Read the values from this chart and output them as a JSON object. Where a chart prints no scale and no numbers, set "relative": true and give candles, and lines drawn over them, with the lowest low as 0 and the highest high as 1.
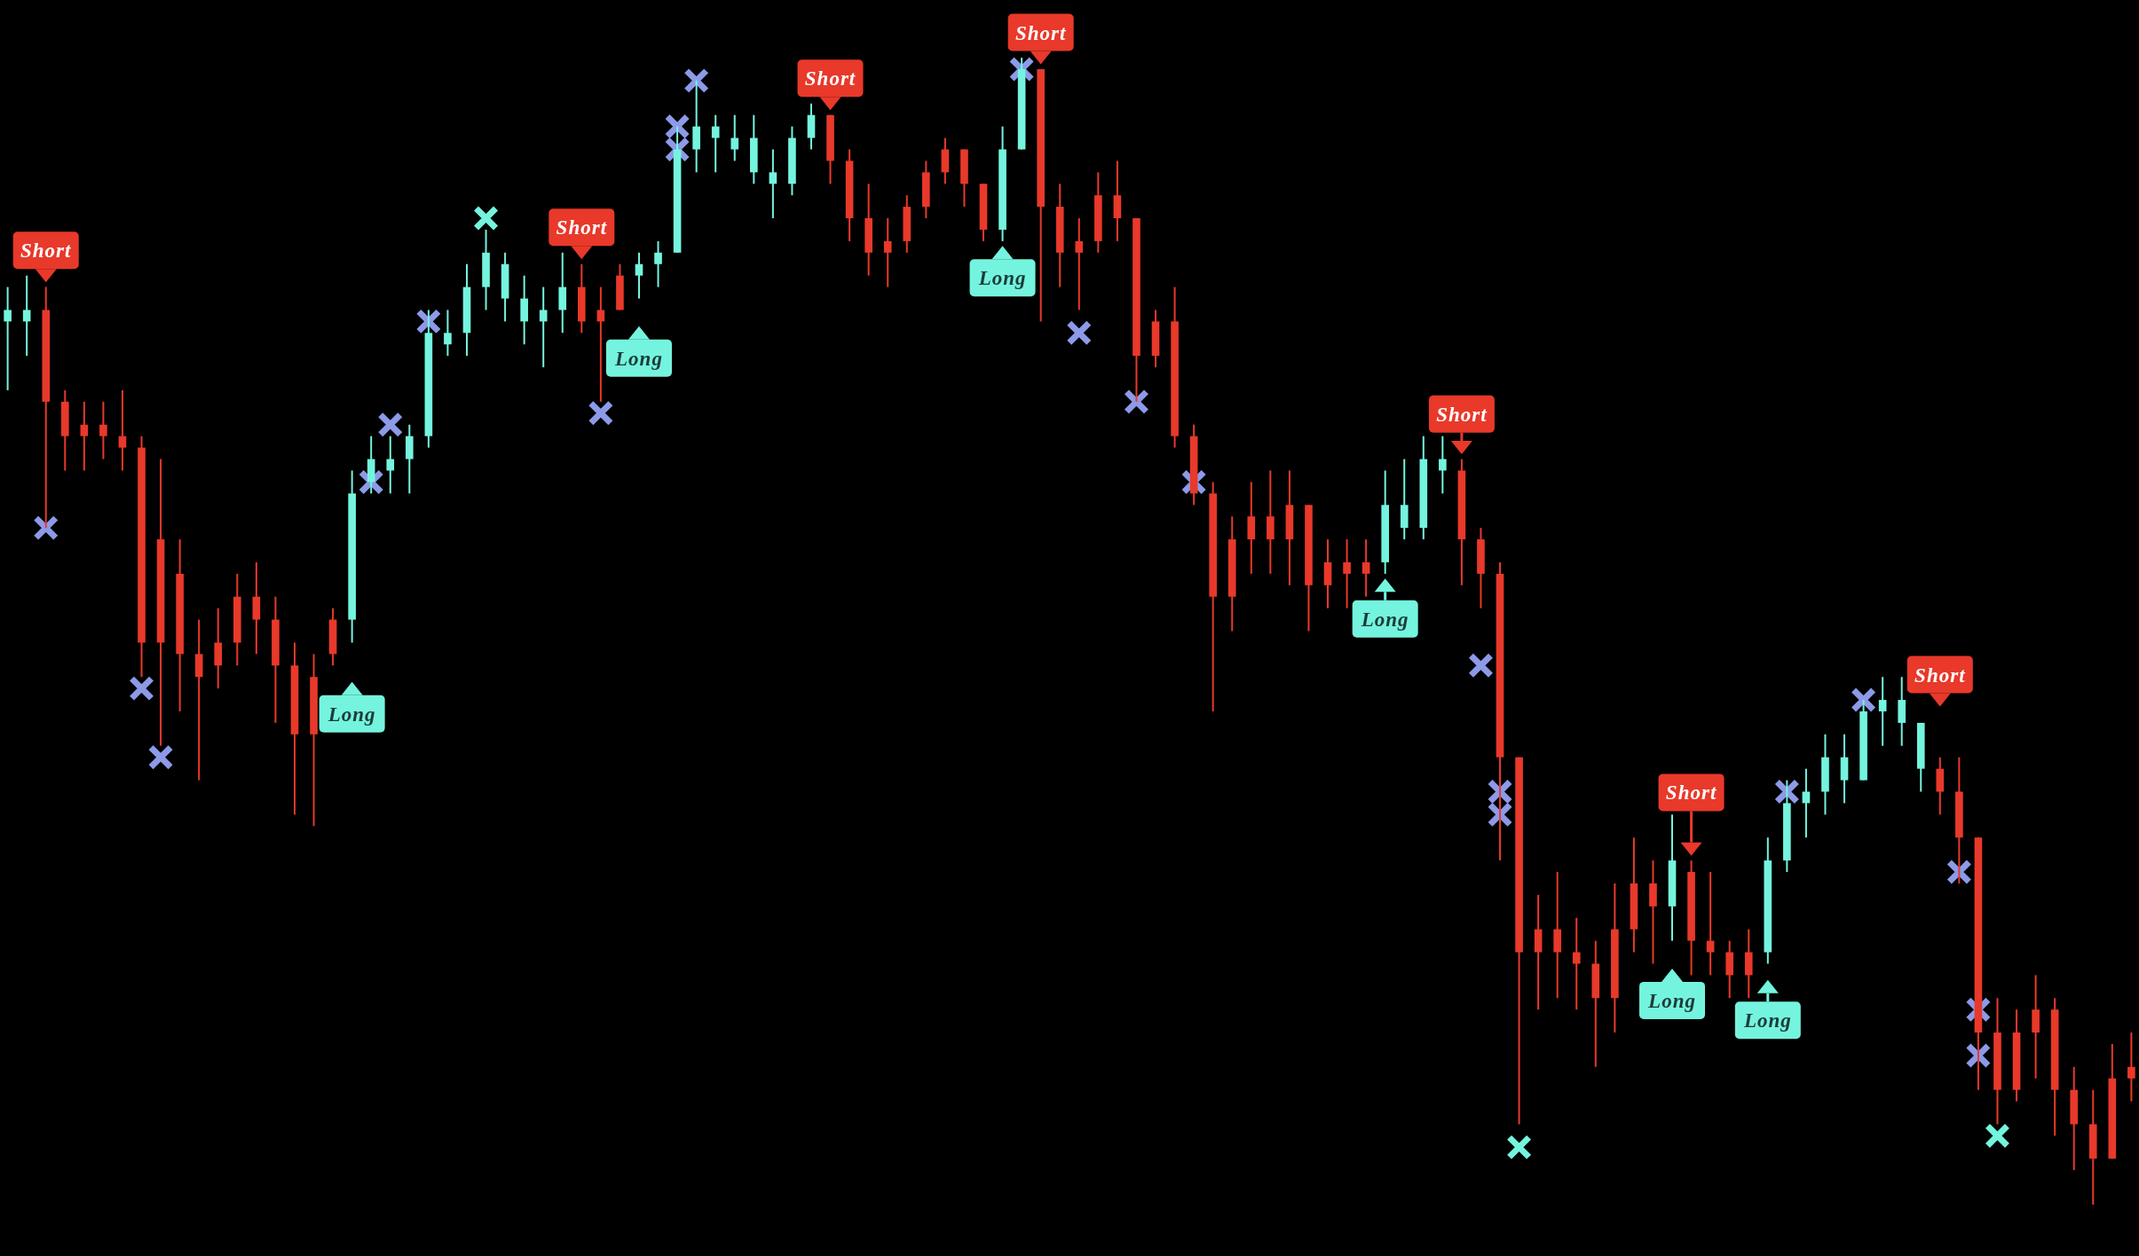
{
  "chart_data": {
    "type": "candlestick",
    "relative": true,
    "categories": [
      null,
      null,
      null,
      null,
      null,
      null,
      null,
      null,
      null,
      null,
      null,
      null,
      null,
      null,
      null,
      null,
      null,
      null,
      null,
      null,
      null,
      null,
      null,
      null,
      null,
      null,
      null,
      null,
      null,
      null,
      null,
      null,
      null,
      null,
      null,
      null,
      null,
      null,
      null,
      null,
      null,
      null,
      null,
      null,
      null,
      null,
      null,
      null,
      null,
      null,
      null,
      null,
      null,
      null,
      null,
      null,
      null,
      null,
      null,
      null,
      null,
      null,
      null,
      null,
      null,
      null,
      null,
      null,
      null,
      null,
      null,
      null,
      null,
      null,
      null,
      null,
      null,
      null,
      null,
      null,
      null,
      null,
      null,
      null,
      null,
      null,
      null,
      null,
      null,
      null,
      null,
      null,
      null,
      null,
      null,
      null,
      null,
      null,
      null,
      null,
      null,
      null,
      null,
      null,
      null,
      null,
      null,
      null,
      null,
      null,
      null,
      null
    ],
    "ohlc": [
      [
        0.77,
        0.8,
        0.71,
        0.78
      ],
      [
        0.77,
        0.81,
        0.74,
        0.78
      ],
      [
        0.78,
        0.8,
        0.59,
        0.7
      ],
      [
        0.7,
        0.71,
        0.64,
        0.67
      ],
      [
        0.68,
        0.7,
        0.64,
        0.67
      ],
      [
        0.68,
        0.7,
        0.65,
        0.67
      ],
      [
        0.67,
        0.71,
        0.64,
        0.66
      ],
      [
        0.66,
        0.67,
        0.46,
        0.49
      ],
      [
        0.58,
        0.65,
        0.4,
        0.49
      ],
      [
        0.55,
        0.58,
        0.43,
        0.48
      ],
      [
        0.48,
        0.51,
        0.37,
        0.46
      ],
      [
        0.49,
        0.52,
        0.45,
        0.47
      ],
      [
        0.53,
        0.55,
        0.47,
        0.49
      ],
      [
        0.53,
        0.56,
        0.48,
        0.51
      ],
      [
        0.51,
        0.53,
        0.42,
        0.47
      ],
      [
        0.47,
        0.49,
        0.34,
        0.41
      ],
      [
        0.46,
        0.48,
        0.33,
        0.41
      ],
      [
        0.51,
        0.52,
        0.47,
        0.48
      ],
      [
        0.51,
        0.64,
        0.49,
        0.62
      ],
      [
        0.63,
        0.67,
        0.62,
        0.65
      ],
      [
        0.64,
        0.67,
        0.62,
        0.65
      ],
      [
        0.65,
        0.68,
        0.62,
        0.67
      ],
      [
        0.67,
        0.78,
        0.66,
        0.76
      ],
      [
        0.75,
        0.78,
        0.74,
        0.76
      ],
      [
        0.76,
        0.82,
        0.74,
        0.8
      ],
      [
        0.8,
        0.85,
        0.78,
        0.83
      ],
      [
        0.79,
        0.83,
        0.77,
        0.82
      ],
      [
        0.77,
        0.81,
        0.75,
        0.79
      ],
      [
        0.77,
        0.8,
        0.73,
        0.78
      ],
      [
        0.78,
        0.83,
        0.76,
        0.8
      ],
      [
        0.8,
        0.82,
        0.76,
        0.77
      ],
      [
        0.78,
        0.8,
        0.7,
        0.77
      ],
      [
        0.81,
        0.82,
        0.78,
        0.78
      ],
      [
        0.81,
        0.83,
        0.79,
        0.82
      ],
      [
        0.82,
        0.84,
        0.8,
        0.83
      ],
      [
        0.83,
        0.94,
        0.83,
        0.92
      ],
      [
        0.92,
        0.98,
        0.9,
        0.94
      ],
      [
        0.93,
        0.95,
        0.9,
        0.94
      ],
      [
        0.92,
        0.95,
        0.91,
        0.93
      ],
      [
        0.9,
        0.95,
        0.89,
        0.93
      ],
      [
        0.89,
        0.92,
        0.86,
        0.9
      ],
      [
        0.89,
        0.94,
        0.88,
        0.93
      ],
      [
        0.93,
        0.96,
        0.92,
        0.95
      ],
      [
        0.95,
        0.95,
        0.89,
        0.91
      ],
      [
        0.91,
        0.92,
        0.84,
        0.86
      ],
      [
        0.86,
        0.89,
        0.81,
        0.83
      ],
      [
        0.84,
        0.86,
        0.8,
        0.83
      ],
      [
        0.87,
        0.88,
        0.83,
        0.84
      ],
      [
        0.9,
        0.91,
        0.86,
        0.87
      ],
      [
        0.92,
        0.93,
        0.89,
        0.9
      ],
      [
        0.92,
        0.92,
        0.87,
        0.89
      ],
      [
        0.89,
        0.89,
        0.84,
        0.85
      ],
      [
        0.85,
        0.94,
        0.84,
        0.92
      ],
      [
        0.92,
        1.0,
        0.92,
        0.99
      ],
      [
        0.99,
        0.99,
        0.77,
        0.87
      ],
      [
        0.87,
        0.89,
        0.8,
        0.83
      ],
      [
        0.84,
        0.86,
        0.78,
        0.83
      ],
      [
        0.88,
        0.9,
        0.83,
        0.84
      ],
      [
        0.88,
        0.91,
        0.84,
        0.86
      ],
      [
        0.86,
        0.86,
        0.7,
        0.74
      ],
      [
        0.77,
        0.78,
        0.73,
        0.74
      ],
      [
        0.77,
        0.8,
        0.66,
        0.67
      ],
      [
        0.67,
        0.68,
        0.61,
        0.62
      ],
      [
        0.62,
        0.63,
        0.43,
        0.53
      ],
      [
        0.58,
        0.6,
        0.5,
        0.53
      ],
      [
        0.6,
        0.63,
        0.55,
        0.58
      ],
      [
        0.6,
        0.64,
        0.55,
        0.58
      ],
      [
        0.61,
        0.64,
        0.54,
        0.58
      ],
      [
        0.61,
        0.61,
        0.5,
        0.54
      ],
      [
        0.56,
        0.58,
        0.52,
        0.54
      ],
      [
        0.56,
        0.58,
        0.52,
        0.55
      ],
      [
        0.56,
        0.58,
        0.53,
        0.55
      ],
      [
        0.56,
        0.64,
        0.55,
        0.61
      ],
      [
        0.59,
        0.65,
        0.58,
        0.61
      ],
      [
        0.59,
        0.67,
        0.58,
        0.65
      ],
      [
        0.64,
        0.67,
        0.62,
        0.65
      ],
      [
        0.64,
        0.65,
        0.54,
        0.58
      ],
      [
        0.58,
        0.59,
        0.52,
        0.55
      ],
      [
        0.55,
        0.56,
        0.3,
        0.39
      ],
      [
        0.39,
        0.39,
        0.07,
        0.22
      ],
      [
        0.24,
        0.27,
        0.17,
        0.22
      ],
      [
        0.24,
        0.29,
        0.18,
        0.22
      ],
      [
        0.22,
        0.25,
        0.17,
        0.21
      ],
      [
        0.21,
        0.23,
        0.12,
        0.18
      ],
      [
        0.24,
        0.28,
        0.15,
        0.18
      ],
      [
        0.28,
        0.32,
        0.22,
        0.24
      ],
      [
        0.28,
        0.3,
        0.21,
        0.26
      ],
      [
        0.26,
        0.34,
        0.23,
        0.3
      ],
      [
        0.29,
        0.3,
        0.2,
        0.23
      ],
      [
        0.23,
        0.29,
        0.2,
        0.22
      ],
      [
        0.22,
        0.23,
        0.18,
        0.2
      ],
      [
        0.22,
        0.24,
        0.18,
        0.2
      ],
      [
        0.22,
        0.32,
        0.21,
        0.3
      ],
      [
        0.3,
        0.37,
        0.29,
        0.35
      ],
      [
        0.35,
        0.38,
        0.32,
        0.36
      ],
      [
        0.36,
        0.41,
        0.34,
        0.39
      ],
      [
        0.37,
        0.41,
        0.35,
        0.39
      ],
      [
        0.37,
        0.44,
        0.37,
        0.43
      ],
      [
        0.43,
        0.46,
        0.4,
        0.44
      ],
      [
        0.42,
        0.46,
        0.4,
        0.44
      ],
      [
        0.38,
        0.42,
        0.36,
        0.42
      ],
      [
        0.38,
        0.39,
        0.34,
        0.36
      ],
      [
        0.36,
        0.39,
        0.28,
        0.32
      ],
      [
        0.32,
        0.32,
        0.1,
        0.15
      ],
      [
        0.15,
        0.18,
        0.07,
        0.1
      ],
      [
        0.15,
        0.17,
        0.09,
        0.1
      ],
      [
        0.17,
        0.2,
        0.11,
        0.15
      ],
      [
        0.17,
        0.18,
        0.06,
        0.1
      ],
      [
        0.1,
        0.12,
        0.03,
        0.07
      ],
      [
        0.07,
        0.1,
        0.0,
        0.04
      ],
      [
        0.11,
        0.14,
        0.04,
        0.04
      ],
      [
        0.12,
        0.15,
        0.09,
        0.11
      ]
    ],
    "colors": [
      "#74f4de",
      "#74f4de",
      "#e8392a",
      "#e8392a",
      "#e8392a",
      "#e8392a",
      "#e8392a",
      "#e8392a",
      "#e8392a",
      "#e8392a",
      "#e8392a",
      "#e8392a",
      "#e8392a",
      "#e8392a",
      "#e8392a",
      "#e8392a",
      "#e8392a",
      "#e8392a",
      "#74f4de",
      "#74f4de",
      "#74f4de",
      "#74f4de",
      "#74f4de",
      "#74f4de",
      "#74f4de",
      "#74f4de",
      "#74f4de",
      "#74f4de",
      "#74f4de",
      "#74f4de",
      "#e8392a",
      "#e8392a",
      "#e8392a",
      "#74f4de",
      "#74f4de",
      "#74f4de",
      "#74f4de",
      "#74f4de",
      "#74f4de",
      "#74f4de",
      "#74f4de",
      "#74f4de",
      "#74f4de",
      "#e8392a",
      "#e8392a",
      "#e8392a",
      "#e8392a",
      "#e8392a",
      "#e8392a",
      "#e8392a",
      "#e8392a",
      "#e8392a",
      "#74f4de",
      "#74f4de",
      "#e8392a",
      "#e8392a",
      "#e8392a",
      "#e8392a",
      "#e8392a",
      "#e8392a",
      "#e8392a",
      "#e8392a",
      "#e8392a",
      "#e8392a",
      "#e8392a",
      "#e8392a",
      "#e8392a",
      "#e8392a",
      "#e8392a",
      "#e8392a",
      "#e8392a",
      "#e8392a",
      "#74f4de",
      "#74f4de",
      "#74f4de",
      "#74f4de",
      "#e8392a",
      "#e8392a",
      "#e8392a",
      "#e8392a",
      "#e8392a",
      "#e8392a",
      "#e8392a",
      "#e8392a",
      "#e8392a",
      "#e8392a",
      "#e8392a",
      "#74f4de",
      "#e8392a",
      "#e8392a",
      "#e8392a",
      "#e8392a",
      "#74f4de",
      "#74f4de",
      "#74f4de",
      "#74f4de",
      "#74f4de",
      "#74f4de",
      "#74f4de",
      "#74f4de",
      "#74f4de",
      "#e8392a",
      "#e8392a",
      "#e8392a",
      "#e8392a",
      "#e8392a",
      "#e8392a",
      "#e8392a",
      "#e8392a",
      "#e8392a",
      "#e8392a",
      "#e8392a"
    ],
    "series": [
      {
        "type": "scatter",
        "marker": "cross",
        "color": "#8c9ae8",
        "values": [
          null,
          null,
          0.59,
          null,
          null,
          null,
          null,
          0.45,
          0.39,
          null,
          null,
          null,
          null,
          null,
          null,
          null,
          null,
          null,
          null,
          0.63,
          0.68,
          null,
          0.77,
          null,
          null,
          null,
          null,
          null,
          null,
          null,
          null,
          0.69,
          null,
          null,
          null,
          0.92,
          0.98,
          null,
          null,
          null,
          null,
          null,
          null,
          null,
          null,
          null,
          null,
          null,
          null,
          null,
          null,
          null,
          null,
          0.99,
          null,
          null,
          0.76,
          null,
          null,
          0.7,
          null,
          null,
          0.63,
          null,
          null,
          null,
          null,
          null,
          null,
          null,
          null,
          null,
          null,
          null,
          null,
          null,
          null,
          0.47,
          0.36,
          null,
          null,
          null,
          null,
          null,
          null,
          null,
          null,
          null,
          null,
          null,
          null,
          null,
          null,
          0.36,
          null,
          null,
          null,
          0.44,
          null,
          null,
          null,
          null,
          0.29,
          0.17,
          null,
          null,
          null,
          null,
          null,
          null,
          null,
          null
        ]
      },
      {
        "type": "scatter",
        "marker": "cross",
        "color": "#8c9ae8",
        "values": [
          null,
          null,
          null,
          null,
          null,
          null,
          null,
          null,
          null,
          null,
          null,
          null,
          null,
          null,
          null,
          null,
          null,
          null,
          null,
          null,
          null,
          null,
          null,
          null,
          null,
          null,
          null,
          null,
          null,
          null,
          null,
          null,
          null,
          null,
          null,
          0.94,
          null,
          null,
          null,
          null,
          null,
          null,
          null,
          null,
          null,
          null,
          null,
          null,
          null,
          null,
          null,
          null,
          null,
          null,
          null,
          null,
          null,
          null,
          null,
          null,
          null,
          null,
          null,
          null,
          null,
          null,
          null,
          null,
          null,
          null,
          null,
          null,
          null,
          null,
          null,
          null,
          null,
          null,
          0.34,
          null,
          null,
          null,
          null,
          null,
          null,
          null,
          null,
          null,
          null,
          null,
          null,
          null,
          null,
          null,
          null,
          null,
          null,
          null,
          null,
          null,
          null,
          null,
          null,
          0.13,
          null,
          null,
          null,
          null,
          null,
          null,
          null,
          null
        ]
      },
      {
        "type": "scatter",
        "marker": "cross",
        "color": "#74f4de",
        "values": [
          null,
          null,
          null,
          null,
          null,
          null,
          null,
          null,
          null,
          null,
          null,
          null,
          null,
          null,
          null,
          null,
          null,
          null,
          null,
          null,
          null,
          null,
          null,
          null,
          null,
          0.86,
          null,
          null,
          null,
          null,
          null,
          null,
          null,
          null,
          null,
          null,
          null,
          null,
          null,
          null,
          null,
          null,
          null,
          null,
          null,
          null,
          null,
          null,
          null,
          null,
          null,
          null,
          null,
          null,
          null,
          null,
          null,
          null,
          null,
          null,
          null,
          null,
          null,
          null,
          null,
          null,
          null,
          null,
          null,
          null,
          null,
          null,
          null,
          null,
          null,
          null,
          null,
          null,
          null,
          0.05,
          null,
          null,
          null,
          null,
          null,
          null,
          null,
          null,
          null,
          null,
          null,
          null,
          null,
          null,
          null,
          null,
          null,
          null,
          null,
          null,
          null,
          null,
          null,
          null,
          0.06,
          null,
          null,
          null,
          null,
          null,
          null,
          null
        ]
      },
      {
        "type": "scatter",
        "name": "Short",
        "color": "#e8392a",
        "values": [
          null,
          null,
          0.81,
          null,
          null,
          null,
          null,
          null,
          null,
          null,
          null,
          null,
          null,
          null,
          null,
          null,
          null,
          null,
          null,
          null,
          null,
          null,
          null,
          null,
          null,
          null,
          null,
          null,
          null,
          null,
          0.83,
          null,
          null,
          null,
          null,
          null,
          null,
          null,
          null,
          null,
          null,
          null,
          null,
          0.96,
          null,
          null,
          null,
          null,
          null,
          null,
          null,
          null,
          null,
          null,
          1.0,
          null,
          null,
          null,
          null,
          null,
          null,
          null,
          null,
          null,
          null,
          null,
          null,
          null,
          null,
          null,
          null,
          null,
          null,
          null,
          null,
          null,
          0.66,
          null,
          null,
          null,
          null,
          null,
          null,
          null,
          null,
          null,
          null,
          null,
          0.31,
          null,
          null,
          null,
          null,
          null,
          null,
          null,
          null,
          null,
          null,
          null,
          null,
          0.44,
          null,
          null,
          null,
          null,
          null,
          null,
          null,
          null,
          null,
          null
        ]
      },
      {
        "type": "scatter",
        "name": "Long",
        "color": "#74f4de",
        "values": [
          null,
          null,
          null,
          null,
          null,
          null,
          null,
          null,
          null,
          null,
          null,
          null,
          null,
          null,
          null,
          null,
          null,
          null,
          0.45,
          null,
          null,
          null,
          null,
          null,
          null,
          null,
          null,
          null,
          null,
          null,
          null,
          null,
          null,
          0.76,
          null,
          null,
          null,
          null,
          null,
          null,
          null,
          null,
          null,
          null,
          null,
          null,
          null,
          null,
          null,
          null,
          null,
          null,
          0.83,
          null,
          null,
          null,
          null,
          null,
          null,
          null,
          null,
          null,
          null,
          null,
          null,
          null,
          null,
          null,
          null,
          null,
          null,
          null,
          0.54,
          null,
          null,
          null,
          null,
          null,
          null,
          null,
          null,
          null,
          null,
          null,
          null,
          null,
          null,
          0.2,
          null,
          null,
          null,
          null,
          0.19,
          null,
          null,
          null,
          null,
          null,
          null,
          null,
          null,
          null,
          null,
          null,
          null,
          null,
          null,
          null,
          null,
          null,
          null,
          null
        ]
      }
    ]
  }
}
